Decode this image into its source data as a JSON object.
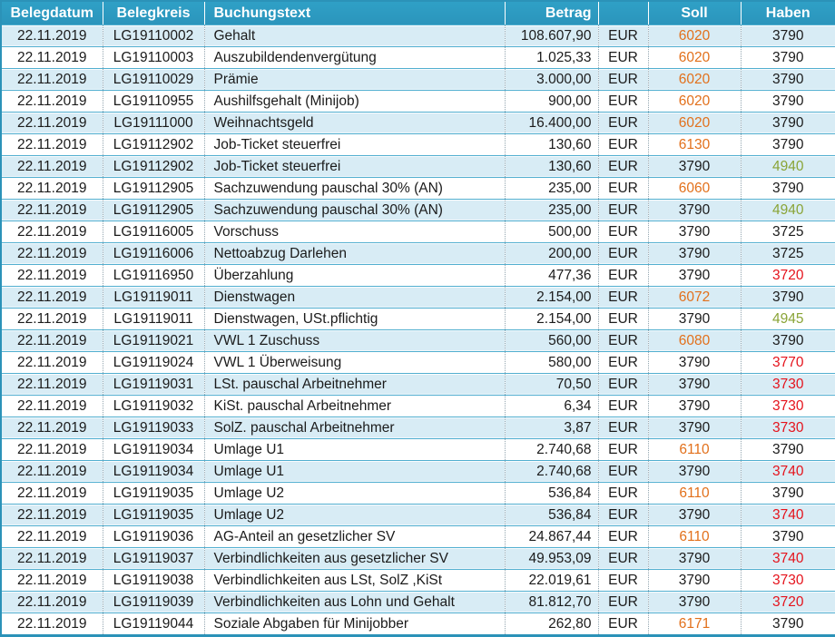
{
  "colors": {
    "header_bg": "#2FA0C6",
    "header_bg2": "#2B95BC",
    "header_text": "#FFFFFF",
    "band": "#D8ECF5",
    "row_line": "#52AFD0",
    "outer": "#2B92B8",
    "dotted": "#94A6B0",
    "text": "#1B1B1B",
    "orange": "#E2701B",
    "green": "#8AA437",
    "red": "#E5131C"
  },
  "table": {
    "headers": [
      "Belegdatum",
      "Belegkreis",
      "Buchungstext",
      "Betrag",
      "",
      "Soll",
      "Haben"
    ],
    "rows": [
      {
        "date": "22.11.2019",
        "kreis": "LG19110002",
        "text": "Gehalt",
        "betrag": "108.607,90",
        "cur": "EUR",
        "soll": "6020",
        "soll_color": "orange",
        "haben": "3790",
        "haben_color": "black"
      },
      {
        "date": "22.11.2019",
        "kreis": "LG19110003",
        "text": "Auszubildendenvergütung",
        "betrag": "1.025,33",
        "cur": "EUR",
        "soll": "6020",
        "soll_color": "orange",
        "haben": "3790",
        "haben_color": "black"
      },
      {
        "date": "22.11.2019",
        "kreis": "LG19110029",
        "text": "Prämie",
        "betrag": "3.000,00",
        "cur": "EUR",
        "soll": "6020",
        "soll_color": "orange",
        "haben": "3790",
        "haben_color": "black"
      },
      {
        "date": "22.11.2019",
        "kreis": "LG19110955",
        "text": "Aushilfsgehalt (Minijob)",
        "betrag": "900,00",
        "cur": "EUR",
        "soll": "6020",
        "soll_color": "orange",
        "haben": "3790",
        "haben_color": "black"
      },
      {
        "date": "22.11.2019",
        "kreis": "LG19111000",
        "text": "Weihnachtsgeld",
        "betrag": "16.400,00",
        "cur": "EUR",
        "soll": "6020",
        "soll_color": "orange",
        "haben": "3790",
        "haben_color": "black"
      },
      {
        "date": "22.11.2019",
        "kreis": "LG19112902",
        "text": "Job-Ticket steuerfrei",
        "betrag": "130,60",
        "cur": "EUR",
        "soll": "6130",
        "soll_color": "orange",
        "haben": "3790",
        "haben_color": "black"
      },
      {
        "date": "22.11.2019",
        "kreis": "LG19112902",
        "text": "Job-Ticket steuerfrei",
        "betrag": "130,60",
        "cur": "EUR",
        "soll": "3790",
        "soll_color": "black",
        "haben": "4940",
        "haben_color": "green"
      },
      {
        "date": "22.11.2019",
        "kreis": "LG19112905",
        "text": "Sachzuwendung pauschal 30% (AN)",
        "betrag": "235,00",
        "cur": "EUR",
        "soll": "6060",
        "soll_color": "orange",
        "haben": "3790",
        "haben_color": "black"
      },
      {
        "date": "22.11.2019",
        "kreis": "LG19112905",
        "text": "Sachzuwendung pauschal 30% (AN)",
        "betrag": "235,00",
        "cur": "EUR",
        "soll": "3790",
        "soll_color": "black",
        "haben": "4940",
        "haben_color": "green"
      },
      {
        "date": "22.11.2019",
        "kreis": "LG19116005",
        "text": "Vorschuss",
        "betrag": "500,00",
        "cur": "EUR",
        "soll": "3790",
        "soll_color": "black",
        "haben": "3725",
        "haben_color": "black"
      },
      {
        "date": "22.11.2019",
        "kreis": "LG19116006",
        "text": "Nettoabzug Darlehen",
        "betrag": "200,00",
        "cur": "EUR",
        "soll": "3790",
        "soll_color": "black",
        "haben": "3725",
        "haben_color": "black"
      },
      {
        "date": "22.11.2019",
        "kreis": "LG19116950",
        "text": "Überzahlung",
        "betrag": "477,36",
        "cur": "EUR",
        "soll": "3790",
        "soll_color": "black",
        "haben": "3720",
        "haben_color": "red"
      },
      {
        "date": "22.11.2019",
        "kreis": "LG19119011",
        "text": "Dienstwagen",
        "betrag": "2.154,00",
        "cur": "EUR",
        "soll": "6072",
        "soll_color": "orange",
        "haben": "3790",
        "haben_color": "black"
      },
      {
        "date": "22.11.2019",
        "kreis": "LG19119011",
        "text": "Dienstwagen, USt.pflichtig",
        "betrag": "2.154,00",
        "cur": "EUR",
        "soll": "3790",
        "soll_color": "black",
        "haben": "4945",
        "haben_color": "green"
      },
      {
        "date": "22.11.2019",
        "kreis": "LG19119021",
        "text": "VWL 1 Zuschuss",
        "betrag": "560,00",
        "cur": "EUR",
        "soll": "6080",
        "soll_color": "orange",
        "haben": "3790",
        "haben_color": "black"
      },
      {
        "date": "22.11.2019",
        "kreis": "LG19119024",
        "text": "VWL 1 Überweisung",
        "betrag": "580,00",
        "cur": "EUR",
        "soll": "3790",
        "soll_color": "black",
        "haben": "3770",
        "haben_color": "red"
      },
      {
        "date": "22.11.2019",
        "kreis": "LG19119031",
        "text": "LSt. pauschal Arbeitnehmer",
        "betrag": "70,50",
        "cur": "EUR",
        "soll": "3790",
        "soll_color": "black",
        "haben": "3730",
        "haben_color": "red"
      },
      {
        "date": "22.11.2019",
        "kreis": "LG19119032",
        "text": "KiSt. pauschal Arbeitnehmer",
        "betrag": "6,34",
        "cur": "EUR",
        "soll": "3790",
        "soll_color": "black",
        "haben": "3730",
        "haben_color": "red"
      },
      {
        "date": "22.11.2019",
        "kreis": "LG19119033",
        "text": "SolZ. pauschal Arbeitnehmer",
        "betrag": "3,87",
        "cur": "EUR",
        "soll": "3790",
        "soll_color": "black",
        "haben": "3730",
        "haben_color": "red"
      },
      {
        "date": "22.11.2019",
        "kreis": "LG19119034",
        "text": "Umlage U1",
        "betrag": "2.740,68",
        "cur": "EUR",
        "soll": "6110",
        "soll_color": "orange",
        "haben": "3790",
        "haben_color": "black"
      },
      {
        "date": "22.11.2019",
        "kreis": "LG19119034",
        "text": "Umlage U1",
        "betrag": "2.740,68",
        "cur": "EUR",
        "soll": "3790",
        "soll_color": "black",
        "haben": "3740",
        "haben_color": "red"
      },
      {
        "date": "22.11.2019",
        "kreis": "LG19119035",
        "text": "Umlage U2",
        "betrag": "536,84",
        "cur": "EUR",
        "soll": "6110",
        "soll_color": "orange",
        "haben": "3790",
        "haben_color": "black"
      },
      {
        "date": "22.11.2019",
        "kreis": "LG19119035",
        "text": "Umlage U2",
        "betrag": "536,84",
        "cur": "EUR",
        "soll": "3790",
        "soll_color": "black",
        "haben": "3740",
        "haben_color": "red"
      },
      {
        "date": "22.11.2019",
        "kreis": "LG19119036",
        "text": "AG-Anteil an gesetzlicher SV",
        "betrag": "24.867,44",
        "cur": "EUR",
        "soll": "6110",
        "soll_color": "orange",
        "haben": "3790",
        "haben_color": "black"
      },
      {
        "date": "22.11.2019",
        "kreis": "LG19119037",
        "text": "Verbindlichkeiten aus gesetzlicher SV",
        "betrag": "49.953,09",
        "cur": "EUR",
        "soll": "3790",
        "soll_color": "black",
        "haben": "3740",
        "haben_color": "red"
      },
      {
        "date": "22.11.2019",
        "kreis": "LG19119038",
        "text": "Verbindlichkeiten aus LSt, SolZ ,KiSt",
        "betrag": "22.019,61",
        "cur": "EUR",
        "soll": "3790",
        "soll_color": "black",
        "haben": "3730",
        "haben_color": "red"
      },
      {
        "date": "22.11.2019",
        "kreis": "LG19119039",
        "text": "Verbindlichkeiten aus Lohn und Gehalt",
        "betrag": "81.812,70",
        "cur": "EUR",
        "soll": "3790",
        "soll_color": "black",
        "haben": "3720",
        "haben_color": "red"
      },
      {
        "date": "22.11.2019",
        "kreis": "LG19119044",
        "text": "Soziale Abgaben für Minijobber",
        "betrag": "262,80",
        "cur": "EUR",
        "soll": "6171",
        "soll_color": "orange",
        "haben": "3790",
        "haben_color": "black"
      }
    ]
  }
}
